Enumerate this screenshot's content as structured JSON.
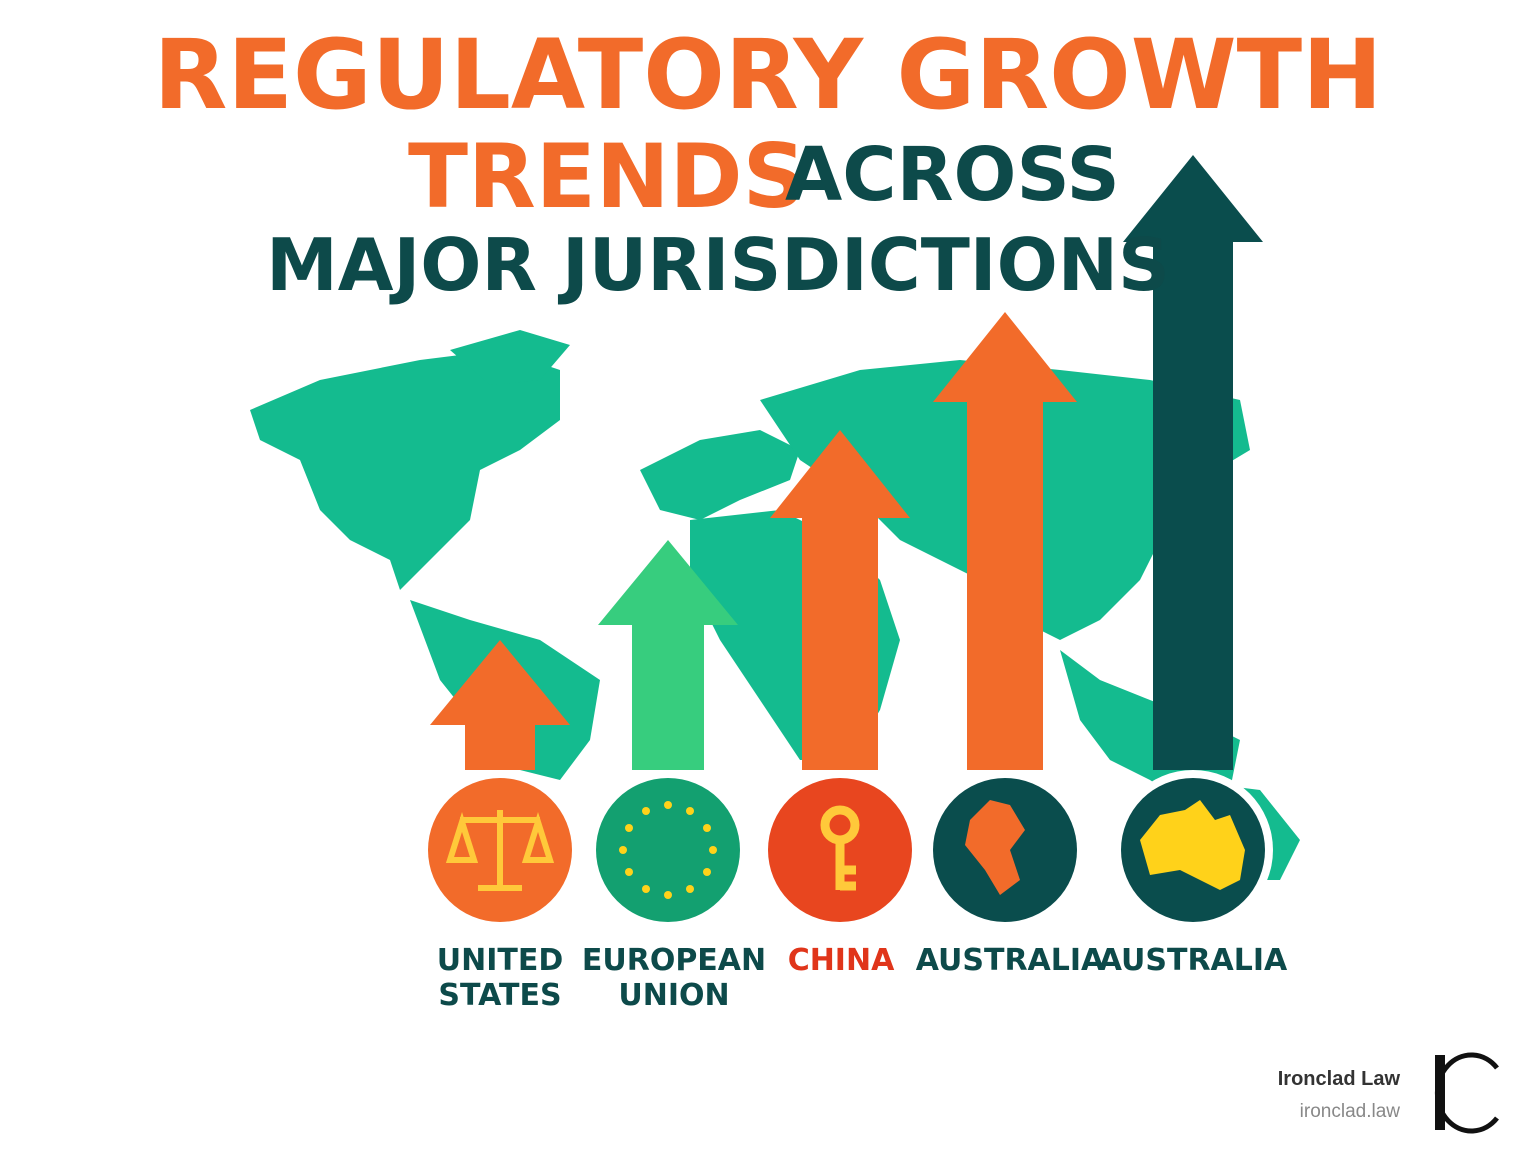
{
  "header": {
    "title_line1": "REGULATORY GROWTH",
    "title_line2_highlight": "TRENDS",
    "title_line2_rest": "ACROSS",
    "title_line3": "MAJOR JURISDICTIONS"
  },
  "jurisdictions": [
    {
      "label_lines": [
        "UNITED",
        "STATES"
      ]
    },
    {
      "label_lines": [
        "EUROPEAN",
        "UNION"
      ]
    },
    {
      "label_lines": [
        "CHINA"
      ]
    },
    {
      "label_lines": [
        "AUSTRALIA"
      ]
    },
    {
      "label_lines": [
        "AUSTRALIA"
      ]
    }
  ],
  "brand": {
    "name": "Ironclad Law",
    "url": "ironclad.law"
  }
}
